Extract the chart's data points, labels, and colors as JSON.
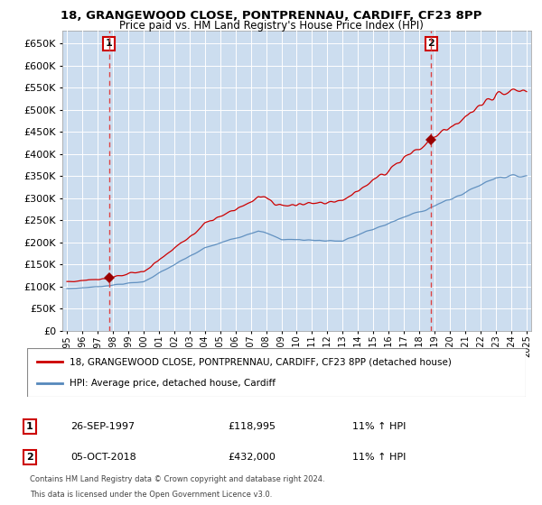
{
  "title_line1": "18, GRANGEWOOD CLOSE, PONTPRENNAU, CARDIFF, CF23 8PP",
  "title_line2": "Price paid vs. HM Land Registry's House Price Index (HPI)",
  "ylim": [
    0,
    680000
  ],
  "yticks": [
    0,
    50000,
    100000,
    150000,
    200000,
    250000,
    300000,
    350000,
    400000,
    450000,
    500000,
    550000,
    600000,
    650000
  ],
  "year_start": 1995,
  "year_end": 2025,
  "sale1_year": 1997.75,
  "sale1_price": 118995,
  "sale1_hpi_pct": "11%",
  "sale1_date": "26-SEP-1997",
  "sale2_year": 2018.77,
  "sale2_price": 432000,
  "sale2_hpi_pct": "11%",
  "sale2_date": "05-OCT-2018",
  "legend_label1": "18, GRANGEWOOD CLOSE, PONTPRENNAU, CARDIFF, CF23 8PP (detached house)",
  "legend_label2": "HPI: Average price, detached house, Cardiff",
  "line_color_red": "#cc0000",
  "line_color_blue": "#5588bb",
  "fill_color_blue": "#ccddef",
  "marker_color": "#990000",
  "vline_color": "#dd4444",
  "footer_text1": "Contains HM Land Registry data © Crown copyright and database right 2024.",
  "footer_text2": "This data is licensed under the Open Government Licence v3.0."
}
